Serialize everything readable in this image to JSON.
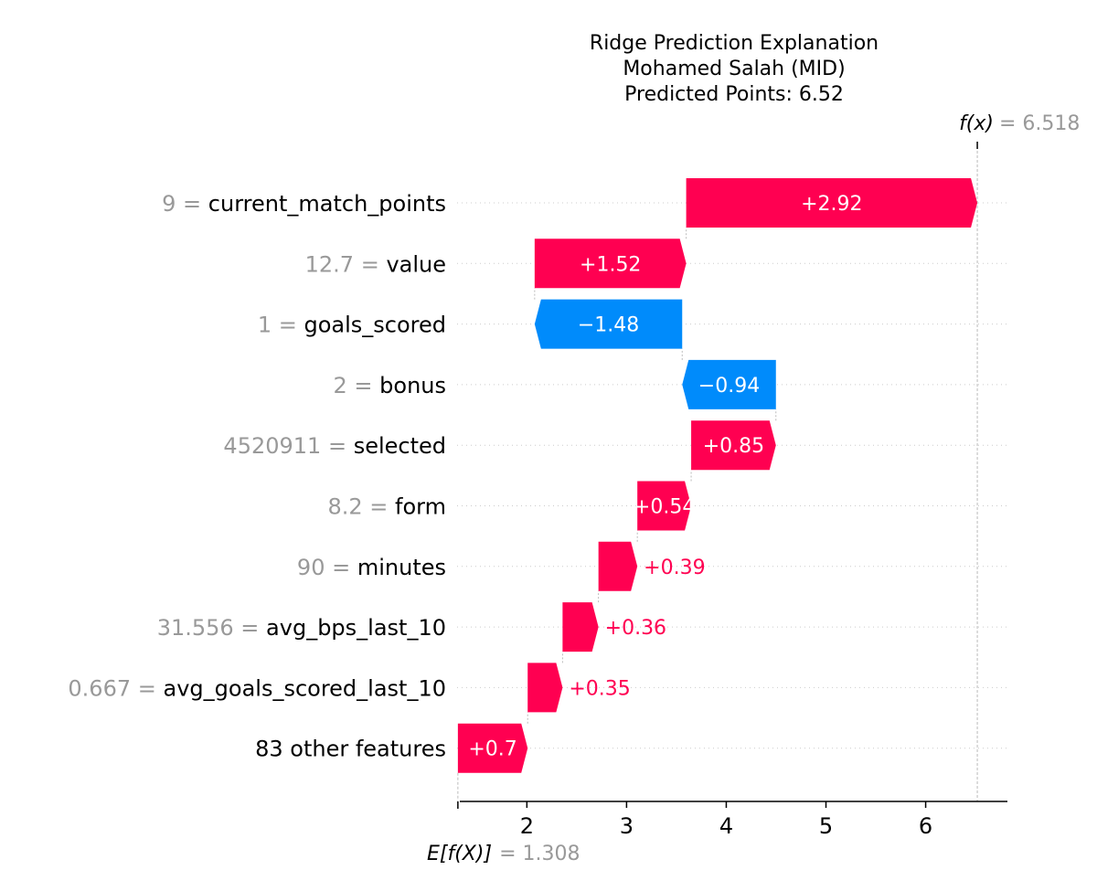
{
  "chart_data": {
    "type": "waterfall",
    "title_lines": [
      "Ridge Prediction Explanation",
      "Mohamed Salah (MID)",
      "Predicted Points: 6.52"
    ],
    "base_value": 1.308,
    "base_label": "E[f(X)]",
    "base_value_text": "= 1.308",
    "output_value": 6.518,
    "output_label": "f(x)",
    "output_value_text": "= 6.518",
    "xlim": [
      1.3,
      6.82
    ],
    "xticks": [
      2,
      3,
      4,
      5,
      6
    ],
    "positive_color": "#ff0051",
    "negative_color": "#008bfb",
    "features": [
      {
        "value": "9",
        "name": "current_match_points",
        "shap": 2.92,
        "label": "+2.92"
      },
      {
        "value": "12.7",
        "name": "value",
        "shap": 1.52,
        "label": "+1.52"
      },
      {
        "value": "1",
        "name": "goals_scored",
        "shap": -1.48,
        "label": "−1.48"
      },
      {
        "value": "2",
        "name": "bonus",
        "shap": -0.94,
        "label": "−0.94"
      },
      {
        "value": "4520911",
        "name": "selected",
        "shap": 0.85,
        "label": "+0.85"
      },
      {
        "value": "8.2",
        "name": "form",
        "shap": 0.54,
        "label": "+0.54"
      },
      {
        "value": "90",
        "name": "minutes",
        "shap": 0.39,
        "label": "+0.39"
      },
      {
        "value": "31.556",
        "name": "avg_bps_last_10",
        "shap": 0.36,
        "label": "+0.36"
      },
      {
        "value": "0.667",
        "name": "avg_goals_scored_last_10",
        "shap": 0.35,
        "label": "+0.35"
      },
      {
        "value": "",
        "name": "83 other features",
        "shap": 0.7,
        "label": "+0.7"
      }
    ]
  }
}
